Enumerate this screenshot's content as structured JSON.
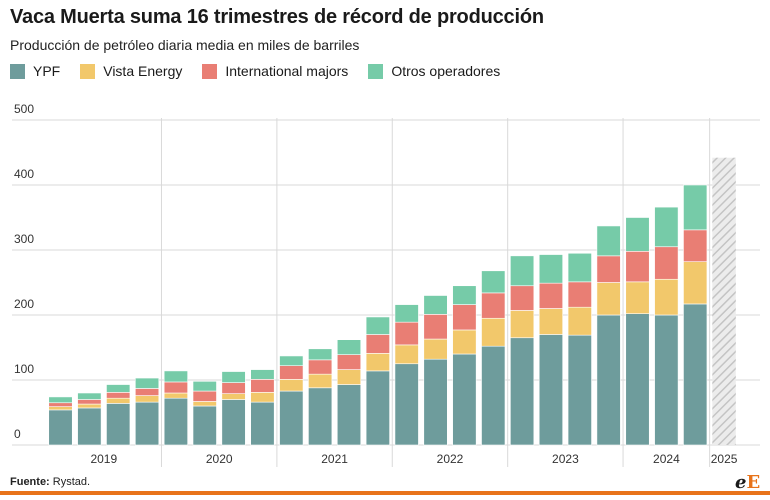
{
  "title": "Vaca Muerta suma 16 trimestres de récord de producción",
  "subtitle": "Producción de petróleo diaria media en miles de barriles",
  "source_label": "Fuente:",
  "source_value": "Rystad.",
  "logo": {
    "e1": "e",
    "e2": "E"
  },
  "colors": {
    "ypf": "#6e9c9c",
    "vista": "#f2c86b",
    "majors": "#e97e74",
    "otros": "#76cba8",
    "forecast": "#d0d0d0",
    "accent": "#e8731a",
    "grid": "#d9d9d9"
  },
  "chart_data": {
    "type": "bar",
    "stacked": true,
    "ylim": [
      0,
      500
    ],
    "yticks": [
      0,
      100,
      200,
      300,
      400,
      500
    ],
    "year_labels": [
      "2019",
      "2020",
      "2021",
      "2022",
      "2023",
      "2024",
      "2025"
    ],
    "series": [
      {
        "key": "ypf",
        "name": "YPF",
        "values": [
          54,
          57,
          64,
          66,
          72,
          60,
          70,
          66,
          83,
          88,
          93,
          114,
          125,
          132,
          140,
          152,
          165,
          170,
          169,
          200,
          202,
          200,
          217
        ]
      },
      {
        "key": "vista",
        "name": "Vista Energy",
        "values": [
          5,
          6,
          8,
          10,
          8,
          7,
          9,
          15,
          18,
          21,
          23,
          27,
          29,
          31,
          37,
          43,
          42,
          40,
          43,
          50,
          49,
          55,
          65
        ]
      },
      {
        "key": "majors",
        "name": "International majors",
        "values": [
          6,
          7,
          9,
          11,
          17,
          16,
          17,
          20,
          21,
          22,
          23,
          29,
          35,
          38,
          39,
          39,
          38,
          39,
          39,
          41,
          47,
          50,
          49
        ]
      },
      {
        "key": "otros",
        "name": "Otros operadores",
        "values": [
          9,
          10,
          12,
          16,
          17,
          15,
          17,
          15,
          15,
          17,
          23,
          27,
          27,
          29,
          29,
          34,
          46,
          44,
          44,
          46,
          52,
          61,
          69
        ]
      }
    ],
    "forecast": {
      "year": "2025",
      "value": 442
    },
    "grid": true,
    "legend_position": "top-left"
  }
}
